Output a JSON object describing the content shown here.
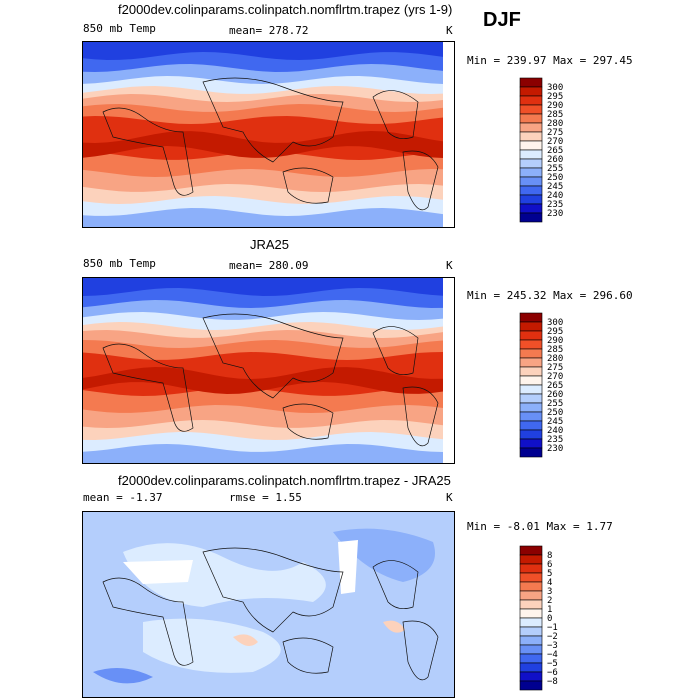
{
  "season": "DJF",
  "units_symbol": "K",
  "panels": [
    {
      "title": "f2000dev.colinparams.colinpatch.nomflrtm.trapez (yrs 1-9)",
      "left_label": "850 mb Temp",
      "stat_label": "mean=",
      "stat_value": "278.72",
      "units": "K",
      "min_max": "Min = 239.97 Max = 297.45"
    },
    {
      "title": "JRA25",
      "left_label": "850 mb Temp",
      "stat_label": "mean=",
      "stat_value": "280.09",
      "units": "K",
      "min_max": "Min = 245.32 Max = 296.60"
    },
    {
      "title": "f2000dev.colinparams.colinpatch.nomflrtm.trapez - JRA25",
      "left_label": "mean =  -1.37",
      "stat_label": "rmse =",
      "stat_value": "1.55",
      "units": "K",
      "min_max": "Min =  -8.01 Max =   1.77"
    }
  ],
  "chart_data": [
    {
      "type": "heatmap",
      "title": "f2000dev.colinparams.colinpatch.nomflrtm.trapez (yrs 1-9)",
      "variable": "850 mb Temp",
      "mean": 278.72,
      "min": 239.97,
      "max": 297.45,
      "colorbar_levels": [
        300,
        295,
        290,
        285,
        280,
        275,
        270,
        265,
        260,
        255,
        250,
        245,
        240,
        235,
        230
      ],
      "colorbar_colors": [
        "#8b0000",
        "#c41a00",
        "#e03010",
        "#f05028",
        "#f47a50",
        "#f8a484",
        "#fcd2bc",
        "#fff4ec",
        "#dcecff",
        "#b4cefc",
        "#8cb0fa",
        "#6890f6",
        "#4068f0",
        "#2040e0",
        "#1010c8",
        "#000090"
      ]
    },
    {
      "type": "heatmap",
      "title": "JRA25",
      "variable": "850 mb Temp",
      "mean": 280.09,
      "min": 245.32,
      "max": 296.6,
      "colorbar_levels": [
        300,
        295,
        290,
        285,
        280,
        275,
        270,
        265,
        260,
        255,
        250,
        245,
        240,
        235,
        230
      ],
      "colorbar_colors": [
        "#8b0000",
        "#c41a00",
        "#e03010",
        "#f05028",
        "#f47a50",
        "#f8a484",
        "#fcd2bc",
        "#fff4ec",
        "#dcecff",
        "#b4cefc",
        "#8cb0fa",
        "#6890f6",
        "#4068f0",
        "#2040e0",
        "#1010c8",
        "#000090"
      ]
    },
    {
      "type": "heatmap",
      "title": "f2000dev.colinparams.colinpatch.nomflrtm.trapez - JRA25",
      "variable": "difference",
      "mean": -1.37,
      "rmse": 1.55,
      "min": -8.01,
      "max": 1.77,
      "colorbar_levels": [
        "8",
        "6",
        "5",
        "4",
        "3",
        "2",
        "1",
        "0",
        "−1",
        "−2",
        "−3",
        "−4",
        "−5",
        "−6",
        "−8"
      ],
      "colorbar_colors": [
        "#8b0000",
        "#c41a00",
        "#e03010",
        "#f05028",
        "#f47a50",
        "#f8a484",
        "#fcd2bc",
        "#fff4ec",
        "#dcecff",
        "#b4cefc",
        "#8cb0fa",
        "#6890f6",
        "#4068f0",
        "#2040e0",
        "#1010c8",
        "#000090"
      ]
    }
  ]
}
